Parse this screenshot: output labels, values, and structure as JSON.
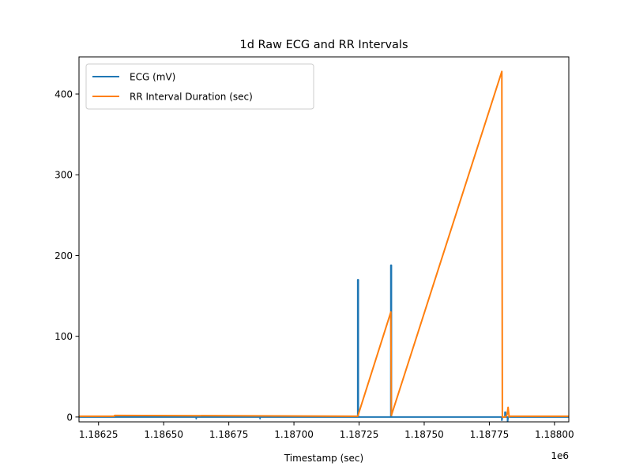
{
  "chart_data": {
    "type": "line",
    "title": "1d Raw ECG and RR Intervals",
    "xlabel": "Timestamp (sec)",
    "ylabel": "",
    "x_offset_label": "1e6",
    "xlim": [
      1.186175,
      1.188055
    ],
    "ylim": [
      -6,
      446
    ],
    "x_ticks": [
      1.18625,
      1.1865,
      1.18675,
      1.187,
      1.18725,
      1.1875,
      1.18775,
      1.188
    ],
    "x_tick_labels": [
      "1.18625",
      "1.18650",
      "1.18675",
      "1.18700",
      "1.18725",
      "1.18750",
      "1.18775",
      "1.18800"
    ],
    "y_ticks": [
      0,
      100,
      200,
      300,
      400
    ],
    "y_tick_labels": [
      "0",
      "100",
      "200",
      "300",
      "400"
    ],
    "grid": false,
    "legend_position": "top-left",
    "series": [
      {
        "name": "ECG (mV)",
        "color": "#1f77b4",
        "x": [
          1.186175,
          1.186625,
          1.186625,
          1.186625,
          1.18687,
          1.18687,
          1.18687,
          1.187245,
          1.187245,
          1.187247,
          1.187247,
          1.187372,
          1.187372,
          1.187374,
          1.187374,
          1.187798,
          1.187798,
          1.1878,
          1.18781,
          1.18781,
          1.187812,
          1.187812,
          1.18782,
          1.18782,
          1.187822,
          1.1879,
          1.188055
        ],
        "y": [
          0,
          0,
          -2,
          0,
          0,
          -2,
          0,
          0,
          170,
          170,
          0,
          0,
          188,
          188,
          0,
          0,
          -4,
          0,
          0,
          6,
          6,
          0,
          0,
          -6,
          0,
          0,
          0
        ]
      },
      {
        "name": "RR Interval Duration (sec)",
        "color": "#ff7f0e",
        "x": [
          1.186175,
          1.18631,
          1.186312,
          1.187245,
          1.187372,
          1.187374,
          1.187798,
          1.1878,
          1.187812,
          1.187818,
          1.187822,
          1.187826,
          1.18783,
          1.1879,
          1.188055
        ],
        "y": [
          1,
          1,
          2,
          1,
          130,
          2,
          428,
          0,
          0,
          3,
          12,
          0,
          1,
          1,
          1
        ]
      }
    ]
  }
}
